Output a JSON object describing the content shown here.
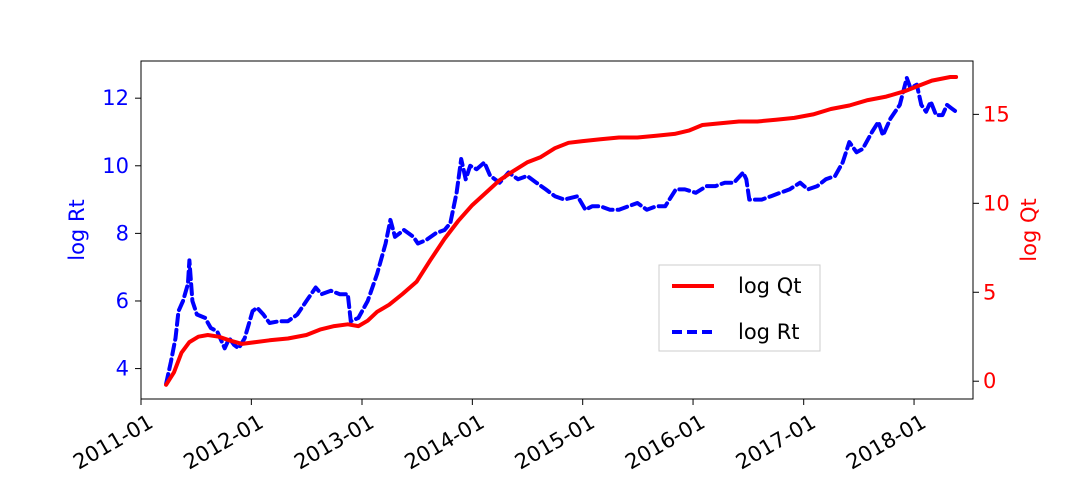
{
  "chart_data": {
    "type": "line",
    "title": "",
    "xlabel": "",
    "ylabel_left": "log Rt",
    "ylabel_right": "log Qt",
    "xlim": [
      "2011-01-01",
      "2018-07-15"
    ],
    "ylim_left": [
      3.1,
      13.1
    ],
    "ylim_right": [
      -1.0,
      18.0
    ],
    "x_ticks": [
      "2011-01",
      "2012-01",
      "2013-01",
      "2014-01",
      "2015-01",
      "2016-01",
      "2017-01",
      "2018-01"
    ],
    "y_ticks_left": [
      4,
      6,
      8,
      10,
      12
    ],
    "y_ticks_right": [
      0,
      5,
      10,
      15
    ],
    "grid": false,
    "legend_position": "lower-right",
    "colors": {
      "log_Qt": "#ff0000",
      "log_Rt": "#0000ff",
      "left_axis": "#0000ff",
      "right_axis": "#ff0000"
    },
    "series": [
      {
        "name": "log Rt",
        "axis": "left",
        "style": "dashed",
        "points": [
          [
            "2011-03-25",
            3.55
          ],
          [
            "2011-04-10",
            4.2
          ],
          [
            "2011-04-25",
            4.9
          ],
          [
            "2011-05-05",
            5.7
          ],
          [
            "2011-05-20",
            6.0
          ],
          [
            "2011-06-05",
            6.5
          ],
          [
            "2011-06-10",
            7.2
          ],
          [
            "2011-06-20",
            6.0
          ],
          [
            "2011-07-05",
            5.6
          ],
          [
            "2011-08-01",
            5.5
          ],
          [
            "2011-08-20",
            5.2
          ],
          [
            "2011-09-10",
            5.1
          ],
          [
            "2011-10-05",
            4.6
          ],
          [
            "2011-10-20",
            4.9
          ],
          [
            "2011-11-05",
            4.7
          ],
          [
            "2011-11-20",
            4.6
          ],
          [
            "2011-12-10",
            4.9
          ],
          [
            "2012-01-05",
            5.7
          ],
          [
            "2012-01-20",
            5.8
          ],
          [
            "2012-02-10",
            5.6
          ],
          [
            "2012-03-01",
            5.35
          ],
          [
            "2012-04-01",
            5.4
          ],
          [
            "2012-05-01",
            5.4
          ],
          [
            "2012-06-01",
            5.6
          ],
          [
            "2012-07-01",
            6.0
          ],
          [
            "2012-08-01",
            6.4
          ],
          [
            "2012-08-20",
            6.2
          ],
          [
            "2012-09-20",
            6.3
          ],
          [
            "2012-10-20",
            6.2
          ],
          [
            "2012-11-15",
            6.2
          ],
          [
            "2012-11-25",
            5.4
          ],
          [
            "2012-12-20",
            5.5
          ],
          [
            "2013-01-20",
            6.0
          ],
          [
            "2013-02-20",
            6.8
          ],
          [
            "2013-03-20",
            7.7
          ],
          [
            "2013-04-05",
            8.4
          ],
          [
            "2013-04-20",
            7.9
          ],
          [
            "2013-05-20",
            8.1
          ],
          [
            "2013-06-20",
            7.9
          ],
          [
            "2013-07-05",
            7.7
          ],
          [
            "2013-08-01",
            7.8
          ],
          [
            "2013-09-01",
            8.0
          ],
          [
            "2013-10-01",
            8.1
          ],
          [
            "2013-10-20",
            8.3
          ],
          [
            "2013-11-10",
            9.2
          ],
          [
            "2013-11-25",
            10.2
          ],
          [
            "2013-12-10",
            9.6
          ],
          [
            "2013-12-25",
            10.0
          ],
          [
            "2014-01-15",
            9.9
          ],
          [
            "2014-02-10",
            10.1
          ],
          [
            "2014-03-01",
            9.7
          ],
          [
            "2014-04-01",
            9.5
          ],
          [
            "2014-05-01",
            9.8
          ],
          [
            "2014-06-01",
            9.6
          ],
          [
            "2014-07-01",
            9.7
          ],
          [
            "2014-08-01",
            9.5
          ],
          [
            "2014-09-01",
            9.3
          ],
          [
            "2014-10-01",
            9.1
          ],
          [
            "2014-11-01",
            9.0
          ],
          [
            "2014-12-15",
            9.1
          ],
          [
            "2015-01-10",
            8.7
          ],
          [
            "2015-02-01",
            8.8
          ],
          [
            "2015-03-01",
            8.8
          ],
          [
            "2015-04-01",
            8.7
          ],
          [
            "2015-05-01",
            8.7
          ],
          [
            "2015-06-01",
            8.8
          ],
          [
            "2015-07-01",
            8.9
          ],
          [
            "2015-08-01",
            8.7
          ],
          [
            "2015-09-01",
            8.8
          ],
          [
            "2015-10-01",
            8.8
          ],
          [
            "2015-11-05",
            9.3
          ],
          [
            "2015-12-05",
            9.3
          ],
          [
            "2016-01-10",
            9.2
          ],
          [
            "2016-02-15",
            9.4
          ],
          [
            "2016-03-15",
            9.4
          ],
          [
            "2016-04-15",
            9.5
          ],
          [
            "2016-05-15",
            9.5
          ],
          [
            "2016-06-15",
            9.8
          ],
          [
            "2016-06-25",
            9.6
          ],
          [
            "2016-07-05",
            9.0
          ],
          [
            "2016-08-15",
            9.0
          ],
          [
            "2016-09-15",
            9.1
          ],
          [
            "2016-10-15",
            9.2
          ],
          [
            "2016-11-15",
            9.3
          ],
          [
            "2016-12-20",
            9.5
          ],
          [
            "2017-01-15",
            9.3
          ],
          [
            "2017-02-15",
            9.4
          ],
          [
            "2017-03-15",
            9.6
          ],
          [
            "2017-04-15",
            9.7
          ],
          [
            "2017-05-10",
            10.1
          ],
          [
            "2017-06-01",
            10.7
          ],
          [
            "2017-06-25",
            10.4
          ],
          [
            "2017-07-15",
            10.5
          ],
          [
            "2017-08-15",
            11.0
          ],
          [
            "2017-09-05",
            11.3
          ],
          [
            "2017-09-20",
            10.9
          ],
          [
            "2017-10-15",
            11.4
          ],
          [
            "2017-11-15",
            11.8
          ],
          [
            "2017-12-08",
            12.6
          ],
          [
            "2017-12-20",
            12.3
          ],
          [
            "2018-01-10",
            12.4
          ],
          [
            "2018-01-25",
            11.8
          ],
          [
            "2018-02-10",
            11.6
          ],
          [
            "2018-02-25",
            11.9
          ],
          [
            "2018-03-15",
            11.5
          ],
          [
            "2018-04-05",
            11.5
          ],
          [
            "2018-04-20",
            11.8
          ],
          [
            "2018-05-05",
            11.7
          ],
          [
            "2018-05-20",
            11.6
          ]
        ]
      },
      {
        "name": "log Qt",
        "axis": "right",
        "style": "solid",
        "points": [
          [
            "2011-03-25",
            -0.2
          ],
          [
            "2011-04-20",
            0.5
          ],
          [
            "2011-05-15",
            1.6
          ],
          [
            "2011-06-10",
            2.2
          ],
          [
            "2011-07-10",
            2.5
          ],
          [
            "2011-08-10",
            2.6
          ],
          [
            "2011-09-15",
            2.5
          ],
          [
            "2011-10-20",
            2.3
          ],
          [
            "2011-12-01",
            2.1
          ],
          [
            "2012-01-15",
            2.2
          ],
          [
            "2012-03-01",
            2.3
          ],
          [
            "2012-05-01",
            2.4
          ],
          [
            "2012-07-01",
            2.6
          ],
          [
            "2012-08-15",
            2.9
          ],
          [
            "2012-10-01",
            3.1
          ],
          [
            "2012-11-15",
            3.2
          ],
          [
            "2012-12-20",
            3.1
          ],
          [
            "2013-01-20",
            3.4
          ],
          [
            "2013-02-20",
            3.9
          ],
          [
            "2013-04-01",
            4.3
          ],
          [
            "2013-05-15",
            4.9
          ],
          [
            "2013-07-01",
            5.6
          ],
          [
            "2013-08-15",
            6.8
          ],
          [
            "2013-10-01",
            8.0
          ],
          [
            "2013-11-15",
            9.0
          ],
          [
            "2014-01-01",
            9.9
          ],
          [
            "2014-02-15",
            10.6
          ],
          [
            "2014-04-01",
            11.3
          ],
          [
            "2014-05-15",
            11.8
          ],
          [
            "2014-07-01",
            12.3
          ],
          [
            "2014-08-15",
            12.6
          ],
          [
            "2014-10-01",
            13.1
          ],
          [
            "2014-11-15",
            13.4
          ],
          [
            "2015-01-01",
            13.5
          ],
          [
            "2015-03-01",
            13.6
          ],
          [
            "2015-05-01",
            13.7
          ],
          [
            "2015-07-01",
            13.7
          ],
          [
            "2015-09-01",
            13.8
          ],
          [
            "2015-11-01",
            13.9
          ],
          [
            "2015-12-20",
            14.1
          ],
          [
            "2016-02-01",
            14.4
          ],
          [
            "2016-04-01",
            14.5
          ],
          [
            "2016-06-01",
            14.6
          ],
          [
            "2016-08-01",
            14.6
          ],
          [
            "2016-10-01",
            14.7
          ],
          [
            "2016-12-01",
            14.8
          ],
          [
            "2017-02-01",
            15.0
          ],
          [
            "2017-04-01",
            15.3
          ],
          [
            "2017-06-01",
            15.5
          ],
          [
            "2017-08-01",
            15.8
          ],
          [
            "2017-10-01",
            16.0
          ],
          [
            "2017-12-01",
            16.3
          ],
          [
            "2018-01-15",
            16.6
          ],
          [
            "2018-03-01",
            16.9
          ],
          [
            "2018-05-01",
            17.1
          ],
          [
            "2018-05-20",
            17.1
          ]
        ]
      }
    ]
  }
}
